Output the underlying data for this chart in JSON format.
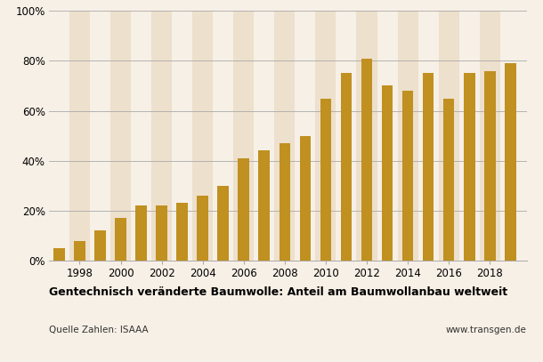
{
  "years": [
    1997,
    1998,
    1999,
    2000,
    2001,
    2002,
    2003,
    2004,
    2005,
    2006,
    2007,
    2008,
    2009,
    2010,
    2011,
    2012,
    2013,
    2014,
    2015,
    2016,
    2017,
    2018,
    2019
  ],
  "values": [
    5,
    8,
    12,
    17,
    22,
    22,
    23,
    26,
    30,
    41,
    44,
    47,
    50,
    65,
    75,
    81,
    70,
    68,
    75,
    65,
    75,
    76,
    79
  ],
  "bar_color": "#C09020",
  "bg_color": "#F7F0E6",
  "stripe_light": "#F7F0E6",
  "stripe_dark": "#EDE0CC",
  "grid_color": "#AAAAAA",
  "title": "Gentechnisch veränderte Baumwolle: Anteil am Baumwollanbau weltweit",
  "source_left": "Quelle Zahlen: ISAAA",
  "source_right": "www.transgen.de",
  "ytick_values": [
    0,
    20,
    40,
    60,
    80,
    100
  ],
  "ylabel_ticks": [
    "0%",
    "20%",
    "40%",
    "60%",
    "80%",
    "100%"
  ],
  "xlim": [
    1996.5,
    2019.8
  ],
  "ylim": [
    0,
    100
  ],
  "xtick_years": [
    1998,
    2000,
    2002,
    2004,
    2006,
    2008,
    2010,
    2012,
    2014,
    2016,
    2018
  ]
}
